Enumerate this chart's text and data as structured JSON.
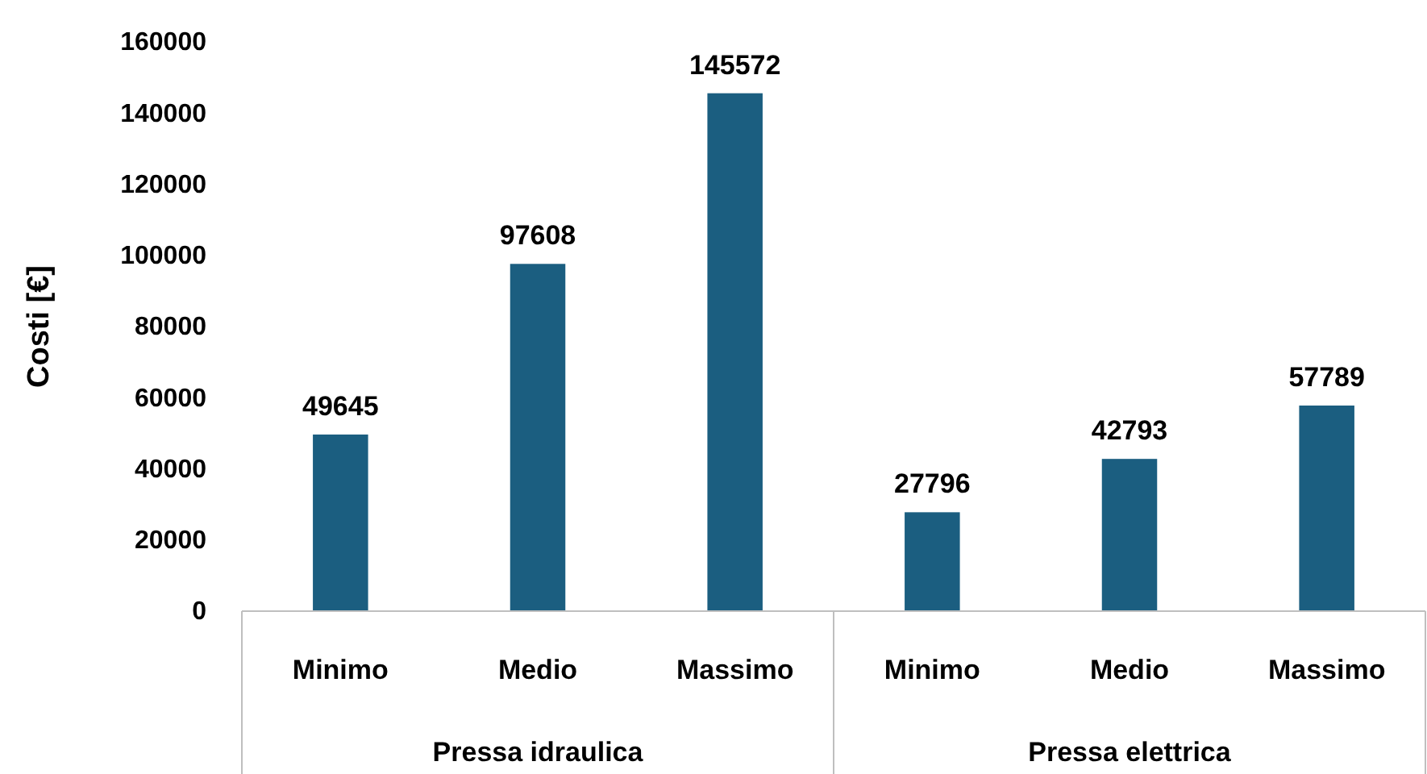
{
  "chart_data": {
    "type": "bar",
    "ylabel": "Costi [€]",
    "categories": [
      "Minimo",
      "Medio",
      "Massimo",
      "Minimo",
      "Medio",
      "Massimo"
    ],
    "values": [
      49645,
      97608,
      145572,
      27796,
      42793,
      57789
    ],
    "color": "#1b5e80",
    "ylim": [
      0,
      160000
    ],
    "yticks": [
      0,
      20000,
      40000,
      60000,
      80000,
      100000,
      120000,
      140000,
      160000
    ],
    "data_labels": true,
    "annotations": [
      "Pressa idraulica",
      "Pressa elettrica"
    ]
  }
}
